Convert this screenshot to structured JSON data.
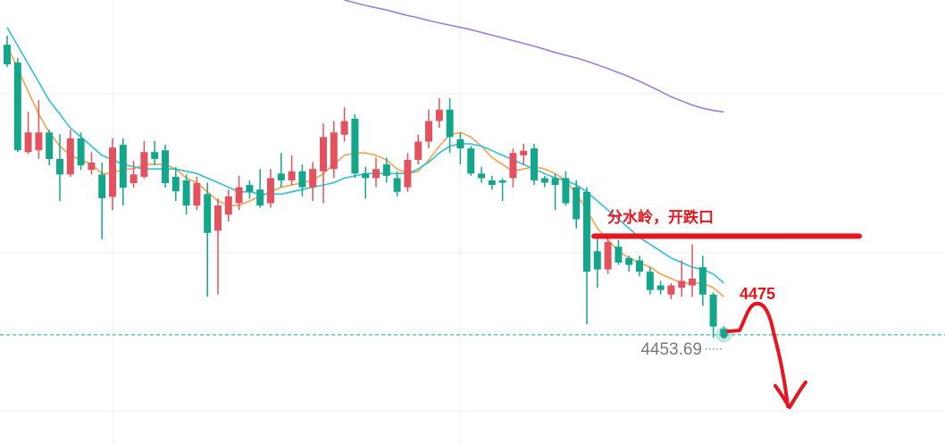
{
  "chart_data": {
    "type": "candlestick",
    "ylim": [
      4430,
      4527
    ],
    "up_color": "#e2525f",
    "down_color": "#14a68a",
    "open": [
      4517.2,
      4513.3,
      4493.7,
      4494.1,
      4498.0,
      4492.2,
      4488.8,
      4496.7,
      4489.8,
      4488.8,
      4483.9,
      4495.3,
      4486.9,
      4488.3,
      4493.7,
      4494.1,
      4488.3,
      4487.5,
      4482.0,
      4484.5,
      4476.5,
      4480.0,
      4482.5,
      4486.5,
      4485.5,
      4482.5,
      4489.0,
      4487.5,
      4489.5,
      4486.0,
      4489.5,
      4490.0,
      4497.5,
      4501.0,
      4489.0,
      4488.0,
      4491.0,
      4488.0,
      4486.0,
      4492.0,
      4496.0,
      4500.5,
      4503.0,
      4496.5,
      4494.5,
      4489.0,
      4487.5,
      4487.5,
      4488.0,
      4493.0,
      4494.5,
      4488.0,
      4488.0,
      4488.0,
      4486.0,
      4485.0,
      4472.0,
      4468.0,
      4473.0,
      4470.5,
      4470.0,
      4467.5,
      4464.5,
      4462.5,
      4464.0,
      4464.5,
      4468.5,
      4462.5,
      4455.0
    ],
    "high": [
      4519.2,
      4514.3,
      4502.5,
      4505.1,
      4498.6,
      4497.6,
      4498.6,
      4498.0,
      4493.7,
      4491.4,
      4496.7,
      4496.7,
      4491.8,
      4496.1,
      4496.1,
      4495.3,
      4490.4,
      4488.8,
      4488.3,
      4487.0,
      4483.5,
      4485.5,
      4488.5,
      4487.5,
      4490.0,
      4490.0,
      4493.5,
      4493.0,
      4491.0,
      4491.5,
      4500.0,
      4500.5,
      4503.5,
      4502.0,
      4490.5,
      4492.5,
      4492.5,
      4489.5,
      4493.5,
      4497.5,
      4503.0,
      4505.5,
      4505.5,
      4498.0,
      4495.0,
      4490.5,
      4488.5,
      4488.0,
      4494.5,
      4495.5,
      4495.5,
      4488.5,
      4489.0,
      4489.5,
      4487.5,
      4486.0,
      4475.0,
      4475.0,
      4474.5,
      4471.0,
      4471.0,
      4468.5,
      4465.5,
      4465.0,
      4470.0,
      4473.5,
      4471.0,
      4463.0,
      4455.5
    ],
    "low": [
      4512.3,
      4493.7,
      4493.3,
      4492.2,
      4490.8,
      4483.0,
      4488.3,
      4489.8,
      4488.8,
      4474.6,
      4481.0,
      4482.0,
      4485.9,
      4487.9,
      4490.8,
      4485.9,
      4483.0,
      4480.0,
      4481.0,
      4462.0,
      4462.5,
      4478.5,
      4481.0,
      4483.5,
      4481.5,
      4481.5,
      4486.0,
      4486.5,
      4484.0,
      4483.0,
      4482.5,
      4488.0,
      4496.0,
      4488.0,
      4483.5,
      4486.0,
      4487.0,
      4484.0,
      4485.0,
      4491.0,
      4494.5,
      4499.0,
      4493.5,
      4491.0,
      4488.5,
      4487.0,
      4485.5,
      4483.0,
      4486.0,
      4491.0,
      4486.5,
      4486.0,
      4481.0,
      4482.0,
      4477.0,
      4456.0,
      4464.0,
      4467.0,
      4469.0,
      4467.5,
      4466.5,
      4462.5,
      4462.5,
      4461.5,
      4462.0,
      4462.0,
      4460.0,
      4453.0,
      4453.2
    ],
    "close": [
      4512.9,
      4494.1,
      4498.0,
      4498.0,
      4492.2,
      4488.8,
      4496.7,
      4490.8,
      4491.4,
      4483.6,
      4494.7,
      4485.9,
      4488.8,
      4493.7,
      4492.2,
      4486.9,
      4485.1,
      4482.0,
      4486.9,
      4476.0,
      4482.0,
      4484.0,
      4486.0,
      4485.0,
      4482.0,
      4488.0,
      4487.5,
      4489.5,
      4486.0,
      4490.0,
      4497.0,
      4498.0,
      4500.5,
      4489.0,
      4488.0,
      4490.0,
      4488.5,
      4485.0,
      4492.0,
      4496.0,
      4500.5,
      4503.0,
      4497.0,
      4494.5,
      4489.0,
      4488.0,
      4486.5,
      4487.0,
      4493.5,
      4494.0,
      4487.5,
      4487.0,
      4486.5,
      4482.5,
      4479.0,
      4467.5,
      4468.0,
      4474.0,
      4469.5,
      4469.0,
      4467.5,
      4463.5,
      4463.5,
      4464.5,
      4465.5,
      4466.0,
      4462.5,
      4455.5,
      4453.7
    ],
    "series": [
      {
        "color": "#f5a04a",
        "values": [
          4517,
          4512,
          4507,
          4502,
          4498,
          4495,
          4493,
          4492,
          4491,
          4489,
          4489,
          4490,
          4490,
          4491,
          4491,
          4491,
          4490,
          4488,
          4487,
          4485,
          4483,
          4482,
          4482,
          4483,
          4484,
          4485,
          4486,
          4486.5,
          4487,
          4487.5,
          4489,
          4491,
          4493,
          4493.5,
          4493.5,
          4493,
          4492,
          4490,
          4489,
          4489.5,
          4492,
          4495,
          4497.5,
          4498,
          4497,
          4495,
          4492.5,
          4491,
          4489.5,
          4490,
          4490.5,
          4490,
          4489,
          4487.5,
          4484.5,
          4481,
          4477,
          4474.5,
          4472,
          4470.5,
          4469.5,
          4468.5,
          4467,
          4466,
          4465,
          4465,
          4465,
          4464,
          4462
        ]
      },
      {
        "color": "#2ec0d8",
        "values": [
          4521,
          4517,
          4513,
          4509,
          4505,
          4502,
          4499,
          4497,
          4495,
          4493,
          4492,
          4491,
          4490.5,
          4490,
          4490,
          4490,
          4490,
          4489.5,
          4489,
          4488,
          4487,
          4486,
          4485,
          4485,
          4484.5,
          4484.5,
          4484.5,
          4485,
          4485.5,
          4486,
          4486.5,
          4487,
          4488,
          4488.5,
          4489,
          4489,
          4489,
          4489,
          4489,
          4490,
          4491.5,
          4493.5,
          4495,
          4495.5,
          4495.5,
          4495,
          4494,
          4493,
          4492,
          4491,
          4490,
          4489,
          4488,
          4487.5,
          4486.5,
          4485,
          4483,
          4481,
          4479,
          4477,
          4475,
          4473.5,
          4472,
          4470.5,
          4469.5,
          4468.5,
          4468,
          4467,
          4465
        ]
      },
      {
        "color": "#9b7fdc",
        "values": [
          null,
          null,
          null,
          null,
          null,
          null,
          null,
          null,
          null,
          null,
          null,
          null,
          null,
          null,
          null,
          null,
          null,
          null,
          null,
          null,
          null,
          null,
          null,
          null,
          null,
          null,
          null,
          null,
          null,
          null,
          null,
          null,
          4527.0,
          4526.4,
          4525.8,
          4525.3,
          4524.8,
          4524.2,
          4523.6,
          4523.1,
          4522.5,
          4522.0,
          4521.5,
          4521.0,
          4520.5,
          4519.9,
          4519.3,
          4518.7,
          4518.1,
          4517.5,
          4516.9,
          4516.2,
          4515.5,
          4514.9,
          4514.3,
          4513.6,
          4512.8,
          4512.0,
          4511.1,
          4510.2,
          4509.2,
          4508.1,
          4507.0,
          4505.8,
          4504.9,
          4504.0,
          4503.3,
          4502.8,
          4502.5
        ]
      }
    ],
    "last_price": 4453.69,
    "level": 4475.3,
    "annotations": [
      "分水岭，开跌口",
      "4475"
    ]
  }
}
